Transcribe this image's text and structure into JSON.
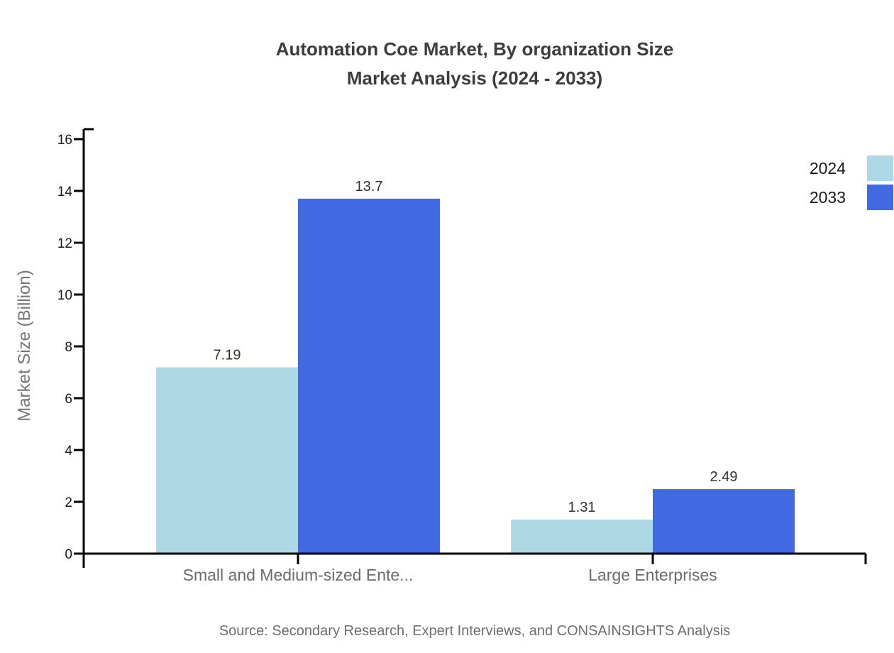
{
  "chart_data": {
    "type": "bar",
    "title_line1": "Automation Coe Market, By organization Size",
    "title_line2": "Market Analysis (2024 - 2033)",
    "categories": [
      "Small and Medium-sized Ente...",
      "Large Enterprises"
    ],
    "series": [
      {
        "name": "2024",
        "color": "#ADD8E6",
        "values": [
          7.19,
          1.31
        ]
      },
      {
        "name": "2033",
        "color": "#4169E1",
        "values": [
          13.7,
          2.49
        ]
      }
    ],
    "value_labels": [
      [
        "7.19",
        "1.31"
      ],
      [
        "13.7",
        "2.49"
      ]
    ],
    "ylabel": "Market Size (Billion)",
    "xlabel": "",
    "ylim": [
      0,
      16
    ],
    "ytick_step": 2,
    "grid": false,
    "legend_position": "top-right",
    "axis_color": "#000000",
    "tick_label_color": "#1a1a1a",
    "value_label_color": "#333333",
    "category_label_color": "#6b6b6b",
    "source": "Source: Secondary Research, Expert Interviews, and CONSAINSIGHTS Analysis"
  }
}
